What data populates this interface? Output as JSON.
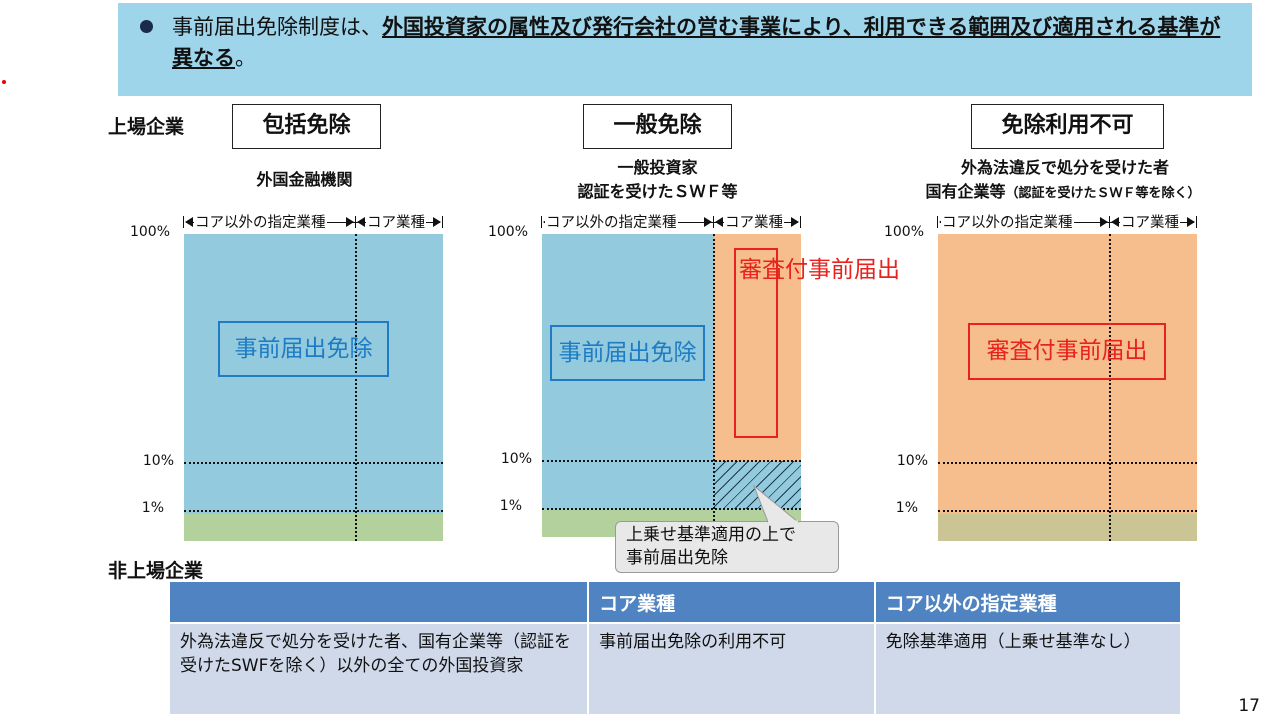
{
  "banner": {
    "bullet_icon": "filled-circle",
    "text_plain_1": "事前届出免除制度は、",
    "text_emph": "外国投資家の属性及び発行会社の営む事業により、利用できる範囲及び適用される基準が異なる",
    "text_plain_2": "。"
  },
  "listed": {
    "heading": "上場企業",
    "panels": [
      {
        "category": "包括免除",
        "subtitle_lines": [
          "外国金融機関"
        ],
        "col_label_left": "コア以外の指定業種",
        "col_label_right": "コア業種",
        "pct_100": "100%",
        "pct_10": "10%",
        "pct_1": "1%",
        "main_label": "事前届出免除",
        "main_color": "#93cadd"
      },
      {
        "category": "一般免除",
        "subtitle_lines": [
          "一般投資家",
          "認証を受けたＳＷＦ等"
        ],
        "col_label_left": "コア以外の指定業種",
        "col_label_right": "コア業種",
        "pct_100": "100%",
        "pct_10": "10%",
        "pct_1": "1%",
        "main_label": "事前届出免除",
        "vertical_label": "審査付事前届出",
        "main_color": "#93cadd",
        "core_color": "#f7be8d",
        "callout_lines": [
          "上乗せ基準適用の上で",
          "事前届出免除"
        ]
      },
      {
        "category": "免除利用不可",
        "subtitle_lines": [
          "外為法違反で処分を受けた者"
        ],
        "subtitle_line2_main": "国有企業等",
        "subtitle_line2_small": "（認証を受けたＳＷＦ等を除く）",
        "col_label_left": "コア以外の指定業種",
        "col_label_right": "コア業種",
        "pct_100": "100%",
        "pct_10": "10%",
        "pct_1": "1%",
        "main_label": "審査付事前届出",
        "main_color": "#f7be8d"
      }
    ]
  },
  "unlisted": {
    "heading": "非上場企業",
    "table": {
      "headers": [
        "",
        "コア業種",
        "コア以外の指定業種"
      ],
      "rows": [
        [
          "外為法違反で処分を受けた者、国有企業等（認証を受けたSWFを除く）以外の全ての外国投資家",
          "事前届出免除の利用不可",
          "免除基準適用（上乗せ基準なし）"
        ]
      ]
    }
  },
  "page_number": "17"
}
